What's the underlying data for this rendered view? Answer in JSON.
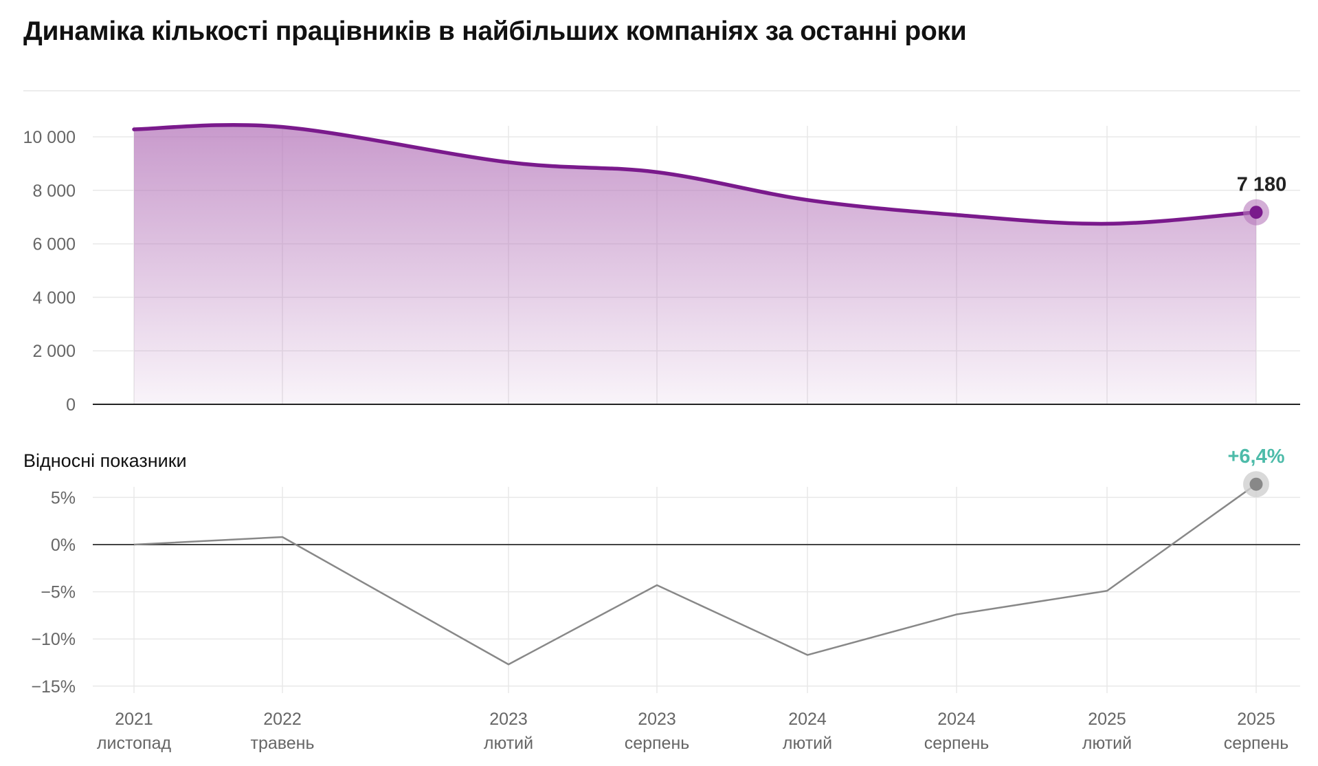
{
  "title": "Динаміка кількості працівників в найбільших компаніях за останні роки",
  "chart_data": [
    {
      "type": "area",
      "x": [
        "2021 листопад",
        "2022 травень",
        "2023 лютий",
        "2023 серпень",
        "2024 лютий",
        "2024 серпень",
        "2025 лютий",
        "2025 серпень"
      ],
      "x_labels": [
        {
          "year": "2021",
          "month": "листопад"
        },
        {
          "year": "2022",
          "month": "травень"
        },
        {
          "year": "2023",
          "month": "лютий"
        },
        {
          "year": "2023",
          "month": "серпень"
        },
        {
          "year": "2024",
          "month": "лютий"
        },
        {
          "year": "2024",
          "month": "серпень"
        },
        {
          "year": "2025",
          "month": "лютий"
        },
        {
          "year": "2025",
          "month": "серпень"
        }
      ],
      "values": [
        10280,
        10370,
        9050,
        8680,
        7640,
        7080,
        6750,
        7180
      ],
      "ylim": [
        0,
        10000
      ],
      "yticks": [
        {
          "value": 0,
          "label": "0"
        },
        {
          "value": 2000,
          "label": "2 000"
        },
        {
          "value": 4000,
          "label": "4 000"
        },
        {
          "value": 6000,
          "label": "6 000"
        },
        {
          "value": 8000,
          "label": "8 000"
        },
        {
          "value": 10000,
          "label": "10 000"
        }
      ],
      "last_value_label": "7 180",
      "grid": true,
      "color": "#7a1a8c",
      "fill_color": "#b678bb"
    },
    {
      "type": "line",
      "subtitle": "Відносні показники",
      "x": [
        "2021 листопад",
        "2022 травень",
        "2023 лютий",
        "2023 серпень",
        "2024 лютий",
        "2024 серпень",
        "2025 лютий",
        "2025 серпень"
      ],
      "values": [
        0,
        0.8,
        -12.7,
        -4.3,
        -11.7,
        -7.4,
        -4.9,
        6.4
      ],
      "ylim": [
        -15,
        5
      ],
      "yticks": [
        {
          "value": 5,
          "label": "5%"
        },
        {
          "value": 0,
          "label": "0%"
        },
        {
          "value": -5,
          "label": "−5%"
        },
        {
          "value": -10,
          "label": "−10%"
        },
        {
          "value": -15,
          "label": "−15%"
        }
      ],
      "last_value_label": "+6,4%",
      "grid": true,
      "color": "#888888",
      "label_color": "#4dbba9"
    }
  ]
}
